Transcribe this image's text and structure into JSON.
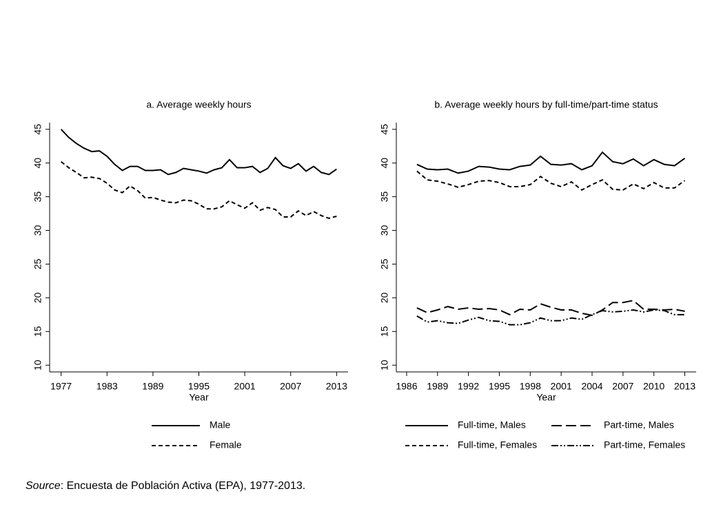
{
  "chart_data": [
    {
      "type": "line",
      "title": "a. Average weekly hours",
      "xlabel": "Year",
      "x": [
        1977,
        1978,
        1979,
        1980,
        1981,
        1982,
        1983,
        1984,
        1985,
        1986,
        1987,
        1988,
        1989,
        1990,
        1991,
        1992,
        1993,
        1994,
        1995,
        1996,
        1997,
        1998,
        1999,
        2000,
        2001,
        2002,
        2003,
        2004,
        2005,
        2006,
        2007,
        2008,
        2009,
        2010,
        2011,
        2012,
        2013
      ],
      "xlim": [
        1975.5,
        2014.5
      ],
      "xticks": [
        1977,
        1983,
        1989,
        1995,
        2001,
        2007,
        2013
      ],
      "ylim": [
        9,
        46
      ],
      "yticks": [
        10,
        15,
        20,
        25,
        30,
        35,
        40,
        45
      ],
      "legend_columns": 1,
      "series": [
        {
          "name": "Male",
          "color": "#000000",
          "dash": "solid",
          "values": [
            45.0,
            43.8,
            42.9,
            42.2,
            41.7,
            41.8,
            41.0,
            39.8,
            38.9,
            39.5,
            39.5,
            38.9,
            38.9,
            39.0,
            38.3,
            38.6,
            39.2,
            39.0,
            38.8,
            38.5,
            39.0,
            39.3,
            40.5,
            39.3,
            39.3,
            39.5,
            38.6,
            39.2,
            40.8,
            39.6,
            39.2,
            39.9,
            38.8,
            39.5,
            38.6,
            38.3,
            39.1
          ]
        },
        {
          "name": "Female",
          "color": "#000000",
          "dash": "dashed",
          "values": [
            40.2,
            39.3,
            38.6,
            37.8,
            37.9,
            37.7,
            37.0,
            36.0,
            35.6,
            36.6,
            35.9,
            34.8,
            34.9,
            34.5,
            34.2,
            34.1,
            34.5,
            34.4,
            33.9,
            33.2,
            33.2,
            33.5,
            34.4,
            33.8,
            33.3,
            34.1,
            33.0,
            33.4,
            33.1,
            32.0,
            32.0,
            32.9,
            32.2,
            32.8,
            32.2,
            31.8,
            32.1
          ]
        }
      ]
    },
    {
      "type": "line",
      "title": "b. Average weekly hours by full-time/part-time status",
      "xlabel": "Year",
      "x": [
        1987,
        1988,
        1989,
        1990,
        1991,
        1992,
        1993,
        1994,
        1995,
        1996,
        1997,
        1998,
        1999,
        2000,
        2001,
        2002,
        2003,
        2004,
        2005,
        2006,
        2007,
        2008,
        2009,
        2010,
        2011,
        2012,
        2013
      ],
      "xlim": [
        1985,
        2014.1
      ],
      "xticks": [
        1986,
        1989,
        1992,
        1995,
        1998,
        2001,
        2004,
        2007,
        2010,
        2013
      ],
      "ylim": [
        9,
        46
      ],
      "yticks": [
        10,
        15,
        20,
        25,
        30,
        35,
        40,
        45
      ],
      "legend_columns": 2,
      "series": [
        {
          "name": "Full-time, Males",
          "color": "#000000",
          "dash": "solid",
          "values": [
            39.8,
            39.1,
            39.0,
            39.1,
            38.5,
            38.8,
            39.5,
            39.4,
            39.1,
            39.0,
            39.5,
            39.7,
            41.0,
            39.8,
            39.7,
            39.9,
            39.0,
            39.6,
            41.6,
            40.2,
            39.9,
            40.6,
            39.6,
            40.5,
            39.8,
            39.6,
            40.7
          ]
        },
        {
          "name": "Part-time, Males",
          "color": "#000000",
          "dash": "longdash",
          "values": [
            18.5,
            17.8,
            18.2,
            18.7,
            18.3,
            18.5,
            18.3,
            18.4,
            18.2,
            17.5,
            18.3,
            18.2,
            19.1,
            18.6,
            18.2,
            18.2,
            17.7,
            17.4,
            18.2,
            19.3,
            19.3,
            19.6,
            18.3,
            18.3,
            18.2,
            18.3,
            18.0
          ]
        },
        {
          "name": "Full-time, Females",
          "color": "#000000",
          "dash": "dashed",
          "values": [
            38.8,
            37.5,
            37.3,
            36.9,
            36.4,
            36.8,
            37.3,
            37.4,
            37.1,
            36.5,
            36.5,
            36.8,
            38.0,
            37.0,
            36.5,
            37.2,
            36.0,
            36.8,
            37.5,
            36.1,
            36.0,
            36.9,
            36.2,
            37.1,
            36.3,
            36.3,
            37.4
          ]
        },
        {
          "name": "Part-time, Females",
          "color": "#000000",
          "dash": "dashdotdot",
          "values": [
            17.3,
            16.4,
            16.6,
            16.3,
            16.2,
            16.7,
            17.1,
            16.6,
            16.5,
            16.0,
            16.0,
            16.3,
            17.0,
            16.6,
            16.6,
            17.0,
            16.8,
            17.5,
            18.1,
            17.9,
            18.0,
            18.2,
            17.9,
            18.2,
            18.1,
            17.5,
            17.5
          ]
        }
      ]
    }
  ],
  "footer": {
    "label": "Source",
    "text": ": Encuesta de Población Activa (EPA), 1977-2013."
  }
}
